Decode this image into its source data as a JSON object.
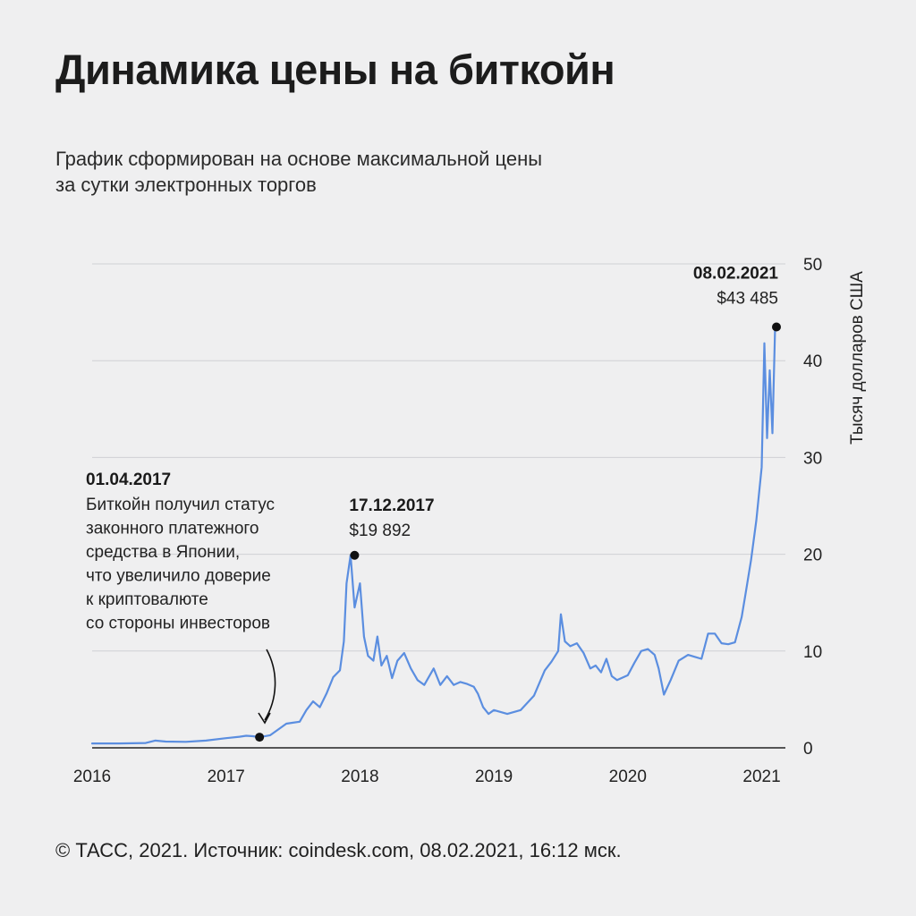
{
  "header": {
    "title": "Динамика цены на биткойн",
    "subtitle_line1": "График сформирован на основе максимальной цены",
    "subtitle_line2": "за сутки электронных торгов"
  },
  "footer": {
    "source": "© ТАСС, 2021. Источник: coindesk.com, 08.02.2021, 16:12 мск."
  },
  "chart_data": {
    "type": "line",
    "ylabel": "Тысяч долларов США",
    "xlim": [
      2016,
      2021.11
    ],
    "ylim": [
      0,
      50
    ],
    "x_ticks": [
      "2016",
      "2017",
      "2018",
      "2019",
      "2020",
      "2021"
    ],
    "y_ticks": [
      "0",
      "10",
      "20",
      "30",
      "40",
      "50"
    ],
    "grid": "horizontal",
    "line_color": "#5b8ee0",
    "series": [
      {
        "x": [
          2016.0,
          2016.2,
          2016.4,
          2016.47,
          2016.55,
          2016.7,
          2016.85,
          2017.0,
          2017.1,
          2017.15,
          2017.2,
          2017.25,
          2017.33,
          2017.4,
          2017.45,
          2017.5,
          2017.55,
          2017.6,
          2017.65,
          2017.7,
          2017.75,
          2017.8,
          2017.85,
          2017.88,
          2017.9,
          2017.93,
          2017.96,
          2018.0,
          2018.03,
          2018.06,
          2018.1,
          2018.13,
          2018.16,
          2018.2,
          2018.24,
          2018.28,
          2018.33,
          2018.38,
          2018.43,
          2018.48,
          2018.55,
          2018.6,
          2018.65,
          2018.7,
          2018.75,
          2018.8,
          2018.85,
          2018.88,
          2018.92,
          2018.96,
          2019.0,
          2019.1,
          2019.2,
          2019.3,
          2019.38,
          2019.43,
          2019.48,
          2019.5,
          2019.53,
          2019.57,
          2019.62,
          2019.67,
          2019.72,
          2019.76,
          2019.8,
          2019.84,
          2019.88,
          2019.92,
          2020.0,
          2020.05,
          2020.1,
          2020.15,
          2020.2,
          2020.23,
          2020.27,
          2020.32,
          2020.38,
          2020.45,
          2020.5,
          2020.55,
          2020.6,
          2020.65,
          2020.7,
          2020.75,
          2020.8,
          2020.85,
          2020.88,
          2020.92,
          2020.96,
          2021.0,
          2021.02,
          2021.04,
          2021.06,
          2021.08,
          2021.1
        ],
        "y": [
          0.45,
          0.45,
          0.5,
          0.75,
          0.65,
          0.62,
          0.75,
          1.0,
          1.15,
          1.25,
          1.2,
          1.1,
          1.3,
          2.0,
          2.5,
          2.6,
          2.7,
          3.9,
          4.8,
          4.2,
          5.6,
          7.3,
          8.0,
          11.0,
          17.0,
          19.9,
          14.5,
          17.0,
          11.5,
          9.5,
          9.0,
          11.5,
          8.5,
          9.5,
          7.2,
          9.0,
          9.8,
          8.2,
          7.0,
          6.5,
          8.2,
          6.5,
          7.4,
          6.5,
          6.8,
          6.6,
          6.3,
          5.6,
          4.2,
          3.5,
          3.9,
          3.5,
          3.9,
          5.4,
          8.0,
          8.9,
          10.0,
          13.8,
          11.0,
          10.5,
          10.8,
          9.8,
          8.2,
          8.5,
          7.8,
          9.2,
          7.4,
          7.0,
          7.5,
          8.8,
          10.0,
          10.2,
          9.6,
          8.2,
          5.5,
          7.0,
          9.0,
          9.6,
          9.4,
          9.2,
          11.8,
          11.8,
          10.8,
          10.7,
          10.9,
          13.5,
          16.0,
          19.4,
          23.5,
          29.0,
          41.8,
          32.0,
          39.0,
          32.5,
          43.485
        ]
      }
    ],
    "annotations": [
      {
        "date": "01.04.2017",
        "x": 2017.25,
        "y": 1.1,
        "text_lines": [
          "Биткойн получил статус",
          "законного платежного",
          "средства в Японии,",
          "что увеличило доверие",
          "к криптовалюте",
          "со стороны инвесторов"
        ]
      },
      {
        "date": "17.12.2017",
        "x": 2017.96,
        "y": 19.892,
        "value": "$19 892"
      },
      {
        "date": "08.02.2021",
        "x": 2021.11,
        "y": 43.485,
        "value": "$43 485"
      }
    ]
  }
}
